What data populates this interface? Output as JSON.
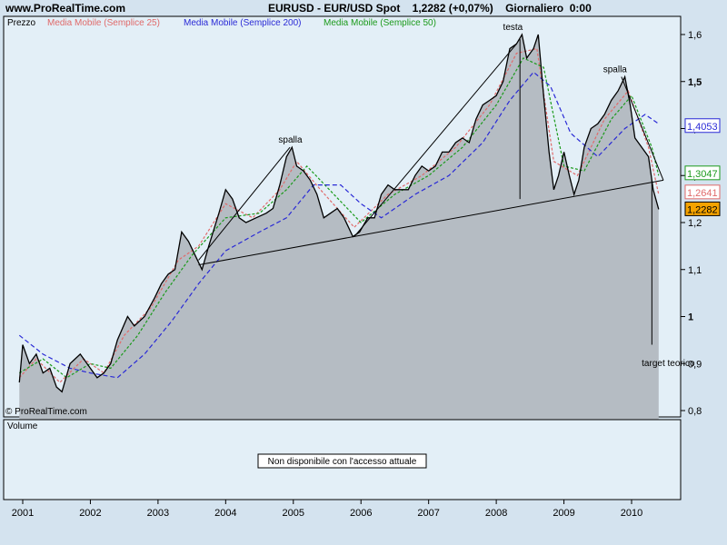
{
  "header": {
    "site": "www.ProRealTime.com",
    "title": "EURUSD - EUR/USD Spot    1,2282 (+0,07%)    Giornaliero  0:00"
  },
  "price_panel": {
    "label": "Prezzo",
    "legend": [
      {
        "label": "Media Mobile (Semplice 25)",
        "color": "#e06a6a"
      },
      {
        "label": "Media Mobile (Semplice 200)",
        "color": "#2a2ad6"
      },
      {
        "label": "Media Mobile (Semplice 50)",
        "color": "#1b9a1b"
      }
    ],
    "watermark": "© ProRealTime.com"
  },
  "volume_panel": {
    "label": "Volume",
    "notice": "Non disponibile con l'accesso attuale"
  },
  "colors": {
    "background": "#d4e3ef",
    "price_area": "#b5bcc3",
    "price_line": "#000000",
    "ma25": "#e06a6a",
    "ma50": "#1b9a1b",
    "ma200": "#2a2ad6"
  },
  "chart_data": {
    "type": "line",
    "title": "EURUSD - EUR/USD Spot",
    "x_ticks": [
      "2001",
      "2002",
      "2003",
      "2004",
      "2005",
      "2006",
      "2007",
      "2008",
      "2009",
      "2010"
    ],
    "y_ticks": [
      0.8,
      0.9,
      1,
      1.1,
      1.2,
      1.3,
      1.4,
      1.5,
      1.6
    ],
    "y_tick_labels": [
      "0,8",
      "0,9",
      "1",
      "1,1",
      "1,2",
      "1,3",
      "1,4",
      "1,5",
      "1,6"
    ],
    "ylim": [
      0.78,
      1.65
    ],
    "xlim": [
      2000.95,
      2010.55
    ],
    "grid": false,
    "price_series": {
      "name": "EURUSD",
      "points": [
        [
          2000.95,
          0.86
        ],
        [
          2001.0,
          0.94
        ],
        [
          2001.1,
          0.9
        ],
        [
          2001.2,
          0.92
        ],
        [
          2001.3,
          0.88
        ],
        [
          2001.4,
          0.89
        ],
        [
          2001.5,
          0.85
        ],
        [
          2001.58,
          0.84
        ],
        [
          2001.7,
          0.9
        ],
        [
          2001.85,
          0.92
        ],
        [
          2002.0,
          0.89
        ],
        [
          2002.1,
          0.87
        ],
        [
          2002.2,
          0.88
        ],
        [
          2002.3,
          0.9
        ],
        [
          2002.4,
          0.95
        ],
        [
          2002.55,
          1.0
        ],
        [
          2002.65,
          0.98
        ],
        [
          2002.8,
          1.0
        ],
        [
          2002.95,
          1.04
        ],
        [
          2003.05,
          1.07
        ],
        [
          2003.15,
          1.09
        ],
        [
          2003.25,
          1.1
        ],
        [
          2003.35,
          1.18
        ],
        [
          2003.45,
          1.16
        ],
        [
          2003.55,
          1.13
        ],
        [
          2003.65,
          1.1
        ],
        [
          2003.75,
          1.15
        ],
        [
          2003.9,
          1.22
        ],
        [
          2004.0,
          1.27
        ],
        [
          2004.1,
          1.25
        ],
        [
          2004.2,
          1.21
        ],
        [
          2004.3,
          1.2
        ],
        [
          2004.45,
          1.21
        ],
        [
          2004.6,
          1.22
        ],
        [
          2004.7,
          1.23
        ],
        [
          2004.8,
          1.28
        ],
        [
          2004.9,
          1.34
        ],
        [
          2004.98,
          1.36
        ],
        [
          2005.05,
          1.32
        ],
        [
          2005.15,
          1.31
        ],
        [
          2005.25,
          1.29
        ],
        [
          2005.35,
          1.26
        ],
        [
          2005.45,
          1.21
        ],
        [
          2005.55,
          1.22
        ],
        [
          2005.65,
          1.23
        ],
        [
          2005.75,
          1.21
        ],
        [
          2005.88,
          1.17
        ],
        [
          2005.98,
          1.18
        ],
        [
          2006.1,
          1.21
        ],
        [
          2006.2,
          1.21
        ],
        [
          2006.3,
          1.26
        ],
        [
          2006.4,
          1.28
        ],
        [
          2006.5,
          1.27
        ],
        [
          2006.6,
          1.27
        ],
        [
          2006.7,
          1.27
        ],
        [
          2006.8,
          1.3
        ],
        [
          2006.9,
          1.32
        ],
        [
          2007.0,
          1.31
        ],
        [
          2007.1,
          1.32
        ],
        [
          2007.2,
          1.35
        ],
        [
          2007.3,
          1.35
        ],
        [
          2007.4,
          1.37
        ],
        [
          2007.5,
          1.38
        ],
        [
          2007.6,
          1.37
        ],
        [
          2007.7,
          1.42
        ],
        [
          2007.8,
          1.45
        ],
        [
          2007.9,
          1.46
        ],
        [
          2008.0,
          1.47
        ],
        [
          2008.1,
          1.5
        ],
        [
          2008.2,
          1.57
        ],
        [
          2008.3,
          1.58
        ],
        [
          2008.38,
          1.6
        ],
        [
          2008.45,
          1.55
        ],
        [
          2008.55,
          1.57
        ],
        [
          2008.62,
          1.6
        ],
        [
          2008.7,
          1.47
        ],
        [
          2008.78,
          1.35
        ],
        [
          2008.85,
          1.27
        ],
        [
          2008.92,
          1.3
        ],
        [
          2009.0,
          1.35
        ],
        [
          2009.08,
          1.3
        ],
        [
          2009.15,
          1.26
        ],
        [
          2009.22,
          1.29
        ],
        [
          2009.3,
          1.36
        ],
        [
          2009.4,
          1.4
        ],
        [
          2009.5,
          1.41
        ],
        [
          2009.6,
          1.43
        ],
        [
          2009.7,
          1.46
        ],
        [
          2009.8,
          1.48
        ],
        [
          2009.9,
          1.51
        ],
        [
          2009.98,
          1.45
        ],
        [
          2010.05,
          1.38
        ],
        [
          2010.15,
          1.36
        ],
        [
          2010.25,
          1.34
        ],
        [
          2010.32,
          1.27
        ],
        [
          2010.4,
          1.2282
        ]
      ]
    },
    "moving_averages": [
      {
        "name": "Media Mobile (Semplice 25)",
        "color": "#e06a6a",
        "points": [
          [
            2000.95,
            0.87
          ],
          [
            2001.2,
            0.91
          ],
          [
            2001.55,
            0.86
          ],
          [
            2001.9,
            0.91
          ],
          [
            2002.2,
            0.88
          ],
          [
            2002.5,
            0.96
          ],
          [
            2002.9,
            1.02
          ],
          [
            2003.3,
            1.12
          ],
          [
            2003.6,
            1.15
          ],
          [
            2004.0,
            1.24
          ],
          [
            2004.4,
            1.21
          ],
          [
            2004.8,
            1.27
          ],
          [
            2005.05,
            1.33
          ],
          [
            2005.4,
            1.27
          ],
          [
            2005.9,
            1.19
          ],
          [
            2006.4,
            1.26
          ],
          [
            2006.9,
            1.3
          ],
          [
            2007.4,
            1.36
          ],
          [
            2007.9,
            1.45
          ],
          [
            2008.3,
            1.56
          ],
          [
            2008.6,
            1.57
          ],
          [
            2008.85,
            1.33
          ],
          [
            2009.2,
            1.3
          ],
          [
            2009.6,
            1.42
          ],
          [
            2009.95,
            1.48
          ],
          [
            2010.25,
            1.36
          ],
          [
            2010.4,
            1.26
          ]
        ]
      },
      {
        "name": "Media Mobile (Semplice 50)",
        "color": "#1b9a1b",
        "points": [
          [
            2000.95,
            0.88
          ],
          [
            2001.3,
            0.91
          ],
          [
            2001.65,
            0.87
          ],
          [
            2002.0,
            0.9
          ],
          [
            2002.3,
            0.89
          ],
          [
            2002.7,
            0.96
          ],
          [
            2003.1,
            1.05
          ],
          [
            2003.5,
            1.13
          ],
          [
            2004.0,
            1.21
          ],
          [
            2004.5,
            1.22
          ],
          [
            2004.9,
            1.27
          ],
          [
            2005.2,
            1.32
          ],
          [
            2005.6,
            1.26
          ],
          [
            2006.0,
            1.2
          ],
          [
            2006.5,
            1.26
          ],
          [
            2007.0,
            1.3
          ],
          [
            2007.5,
            1.36
          ],
          [
            2008.0,
            1.45
          ],
          [
            2008.4,
            1.55
          ],
          [
            2008.7,
            1.53
          ],
          [
            2009.0,
            1.32
          ],
          [
            2009.3,
            1.31
          ],
          [
            2009.7,
            1.42
          ],
          [
            2010.0,
            1.47
          ],
          [
            2010.3,
            1.36
          ],
          [
            2010.4,
            1.3
          ]
        ]
      },
      {
        "name": "Media Mobile (Semplice 200)",
        "color": "#2a2ad6",
        "points": [
          [
            2000.95,
            0.96
          ],
          [
            2001.3,
            0.92
          ],
          [
            2001.7,
            0.89
          ],
          [
            2002.0,
            0.88
          ],
          [
            2002.4,
            0.87
          ],
          [
            2002.8,
            0.92
          ],
          [
            2003.2,
            0.99
          ],
          [
            2003.6,
            1.07
          ],
          [
            2004.0,
            1.14
          ],
          [
            2004.5,
            1.18
          ],
          [
            2004.9,
            1.21
          ],
          [
            2005.3,
            1.28
          ],
          [
            2005.7,
            1.28
          ],
          [
            2006.0,
            1.24
          ],
          [
            2006.3,
            1.21
          ],
          [
            2006.8,
            1.26
          ],
          [
            2007.3,
            1.3
          ],
          [
            2007.8,
            1.37
          ],
          [
            2008.2,
            1.46
          ],
          [
            2008.55,
            1.52
          ],
          [
            2008.8,
            1.49
          ],
          [
            2009.1,
            1.39
          ],
          [
            2009.5,
            1.34
          ],
          [
            2009.9,
            1.4
          ],
          [
            2010.2,
            1.43
          ],
          [
            2010.4,
            1.41
          ]
        ]
      }
    ],
    "trendlines": [
      [
        [
          2003.6,
          1.12
        ],
        [
          2004.95,
          1.36
        ]
      ],
      [
        [
          2005.9,
          1.17
        ],
        [
          2008.3,
          1.58
        ]
      ],
      [
        [
          2009.85,
          1.51
        ],
        [
          2010.47,
          1.29
        ]
      ],
      [
        [
          2003.6,
          1.11
        ],
        [
          2010.47,
          1.29
        ]
      ]
    ],
    "vertical_lines": [
      [
        [
          2008.35,
          1.59
        ],
        [
          2008.35,
          1.25
        ]
      ],
      [
        [
          2010.3,
          1.29
        ],
        [
          2010.3,
          0.94
        ]
      ]
    ],
    "annotations": [
      {
        "text": "spalla",
        "x": 2004.78,
        "y": 1.37
      },
      {
        "text": "testa",
        "x": 2008.1,
        "y": 1.61
      },
      {
        "text": "spalla",
        "x": 2009.58,
        "y": 1.52
      },
      {
        "text": "target teorico",
        "x": 2010.15,
        "y": 0.895
      }
    ],
    "price_tags": [
      {
        "label": "1,4053",
        "value": 1.4053,
        "color": "#2a2ad6",
        "bg": "#ffffff"
      },
      {
        "label": "1,3047",
        "value": 1.3047,
        "color": "#1b9a1b",
        "bg": "#ffffff"
      },
      {
        "label": "1,2641",
        "value": 1.2641,
        "color": "#e06a6a",
        "bg": "#ffffff"
      },
      {
        "label": "1,2282",
        "value": 1.2282,
        "color": "#000000",
        "bg": "#f5a300"
      }
    ]
  }
}
